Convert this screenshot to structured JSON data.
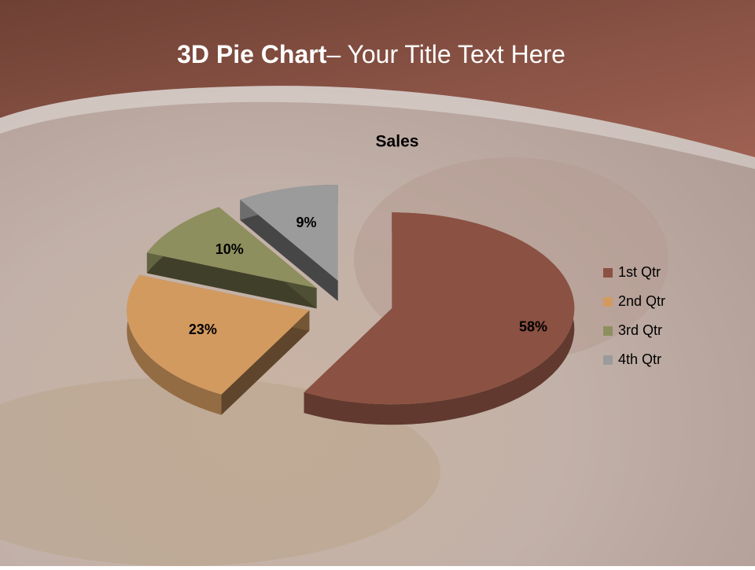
{
  "slide": {
    "title": [
      "3D Pie Chart",
      "– Your Title Text Here"
    ]
  },
  "chart_data": {
    "type": "pie",
    "title": "Sales",
    "categories": [
      "1st Qtr",
      "2nd Qtr",
      "3rd Qtr",
      "4th Qtr"
    ],
    "values": [
      58,
      23,
      10,
      9
    ],
    "value_labels": [
      "58%",
      "23%",
      "10%",
      "9%"
    ],
    "colors": [
      "#8b5142",
      "#d39a5f",
      "#8e8f5e",
      "#9b9b9b"
    ],
    "legend": "right"
  }
}
